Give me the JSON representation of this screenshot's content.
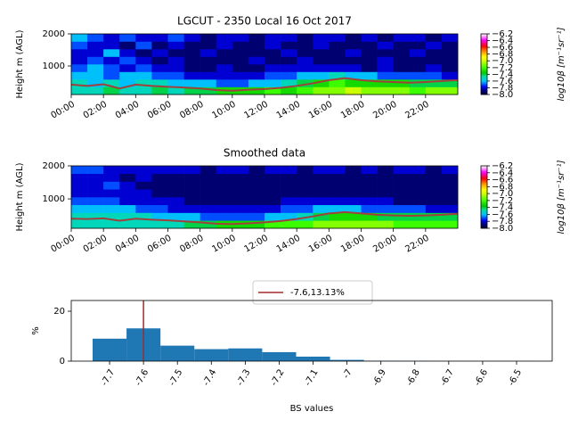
{
  "chart_data": [
    {
      "type": "heatmap",
      "title": "LGCUT - 2350 Local 16 Oct 2017",
      "ylabel": "Height m (AGL)",
      "xlim": [
        0,
        24
      ],
      "ylim": [
        111,
        2000
      ],
      "xticks": [
        {
          "value": 0,
          "label": "00:00"
        },
        {
          "value": 2,
          "label": "02:00"
        },
        {
          "value": 4,
          "label": "04:00"
        },
        {
          "value": 6,
          "label": "06:00"
        },
        {
          "value": 8,
          "label": "08:00"
        },
        {
          "value": 10,
          "label": "10:00"
        },
        {
          "value": 12,
          "label": "12:00"
        },
        {
          "value": 14,
          "label": "14:00"
        },
        {
          "value": 16,
          "label": "16:00"
        },
        {
          "value": 18,
          "label": "18:00"
        },
        {
          "value": 20,
          "label": "20:00"
        },
        {
          "value": 22,
          "label": "22:00"
        }
      ],
      "yticks": [
        1000,
        2000
      ],
      "x_bins": [
        0,
        1,
        2,
        3,
        4,
        5,
        6,
        7,
        8,
        9,
        10,
        11,
        12,
        13,
        14,
        15,
        16,
        17,
        18,
        19,
        20,
        21,
        22,
        23,
        24
      ],
      "y_bins": [
        111,
        347,
        583,
        820,
        1056,
        1292,
        1528,
        1764,
        2000
      ],
      "z": [
        [
          -7.5,
          -7.5,
          -7.4,
          -7.5,
          -7.5,
          -7.4,
          -7.5,
          -7.4,
          -7.4,
          -7.3,
          -7.3,
          -7.3,
          -7.2,
          -7.3,
          -7.2,
          -7.1,
          -7.1,
          -7.0,
          -7.1,
          -7.1,
          -7.1,
          -7.2,
          -7.1,
          -7.1
        ],
        [
          -7.5,
          -7.6,
          -7.5,
          -7.6,
          -7.5,
          -7.5,
          -7.6,
          -7.6,
          -7.6,
          -7.7,
          -7.7,
          -7.6,
          -7.6,
          -7.5,
          -7.4,
          -7.3,
          -7.2,
          -7.3,
          -7.3,
          -7.3,
          -7.3,
          -7.4,
          -7.4,
          -7.4
        ],
        [
          -7.6,
          -7.6,
          -7.7,
          -7.6,
          -7.6,
          -7.7,
          -7.7,
          -7.8,
          -7.8,
          -7.8,
          -7.8,
          -7.8,
          -7.7,
          -7.7,
          -7.6,
          -7.6,
          -7.5,
          -7.6,
          -7.6,
          -7.7,
          -7.7,
          -7.7,
          -7.7,
          -7.8
        ],
        [
          -7.7,
          -7.6,
          -7.7,
          -7.8,
          -7.7,
          -7.8,
          -7.8,
          -7.9,
          -7.9,
          -7.8,
          -7.9,
          -7.9,
          -7.8,
          -7.8,
          -7.8,
          -7.8,
          -7.8,
          -7.8,
          -7.9,
          -7.8,
          -7.9,
          -7.9,
          -7.8,
          -7.9
        ],
        [
          -7.8,
          -7.7,
          -7.8,
          -7.7,
          -7.8,
          -7.9,
          -7.8,
          -7.9,
          -7.9,
          -7.9,
          -7.9,
          -7.8,
          -7.9,
          -7.9,
          -7.8,
          -7.9,
          -7.9,
          -7.9,
          -7.9,
          -7.8,
          -7.9,
          -7.9,
          -7.9,
          -7.9
        ],
        [
          -7.8,
          -7.8,
          -7.6,
          -7.8,
          -7.9,
          -7.8,
          -7.9,
          -7.9,
          -7.8,
          -7.9,
          -7.9,
          -7.9,
          -7.9,
          -7.8,
          -7.9,
          -7.9,
          -7.9,
          -7.8,
          -7.9,
          -7.9,
          -7.9,
          -7.8,
          -7.9,
          -7.9
        ],
        [
          -7.7,
          -7.8,
          -7.8,
          -7.9,
          -7.7,
          -7.9,
          -7.8,
          -7.9,
          -7.9,
          -7.8,
          -7.9,
          -7.9,
          -7.8,
          -7.9,
          -7.9,
          -7.8,
          -7.9,
          -7.9,
          -7.9,
          -7.8,
          -7.9,
          -7.9,
          -7.8,
          -7.9
        ],
        [
          -7.6,
          -7.7,
          -7.8,
          -7.7,
          -7.8,
          -7.8,
          -7.7,
          -7.8,
          -7.9,
          -7.8,
          -7.8,
          -7.9,
          -7.8,
          -7.8,
          -7.9,
          -7.8,
          -7.8,
          -7.9,
          -7.8,
          -7.9,
          -7.8,
          -7.8,
          -7.9,
          -7.8
        ]
      ],
      "line": {
        "color": "#a0413c",
        "x": [
          0,
          1,
          2,
          3,
          4,
          5,
          6,
          7,
          8,
          9,
          10,
          11,
          12,
          13,
          14,
          15,
          16,
          17,
          18,
          19,
          20,
          21,
          22,
          23,
          24
        ],
        "values": [
          420,
          380,
          430,
          300,
          420,
          380,
          350,
          330,
          300,
          250,
          230,
          260,
          280,
          320,
          380,
          460,
          560,
          620,
          560,
          520,
          500,
          480,
          500,
          530,
          560
        ]
      },
      "colorbar": {
        "label": "log10β [m⁻¹sr⁻¹]",
        "lim": [
          -8.0,
          -6.2
        ],
        "ticks": [
          {
            "value": -6.2,
            "label": "−6.2"
          },
          {
            "value": -6.4,
            "label": "−6.4"
          },
          {
            "value": -6.6,
            "label": "−6.6"
          },
          {
            "value": -6.8,
            "label": "−6.8"
          },
          {
            "value": -7.0,
            "label": "−7.0"
          },
          {
            "value": -7.2,
            "label": "−7.2"
          },
          {
            "value": -7.4,
            "label": "−7.4"
          },
          {
            "value": -7.6,
            "label": "−7.6"
          },
          {
            "value": -7.8,
            "label": "−7.8"
          },
          {
            "value": -8.0,
            "label": "−8.0"
          }
        ]
      }
    },
    {
      "type": "heatmap",
      "title": "Smoothed data",
      "ylabel": "Height m (AGL)",
      "xlim": [
        0,
        24
      ],
      "ylim": [
        111,
        2000
      ],
      "xticks": [
        {
          "value": 0,
          "label": "00:00"
        },
        {
          "value": 2,
          "label": "02:00"
        },
        {
          "value": 4,
          "label": "04:00"
        },
        {
          "value": 6,
          "label": "06:00"
        },
        {
          "value": 8,
          "label": "08:00"
        },
        {
          "value": 10,
          "label": "10:00"
        },
        {
          "value": 12,
          "label": "12:00"
        },
        {
          "value": 14,
          "label": "14:00"
        },
        {
          "value": 16,
          "label": "16:00"
        },
        {
          "value": 18,
          "label": "18:00"
        },
        {
          "value": 20,
          "label": "20:00"
        },
        {
          "value": 22,
          "label": "22:00"
        }
      ],
      "yticks": [
        1000,
        2000
      ],
      "x_bins": [
        0,
        1,
        2,
        3,
        4,
        5,
        6,
        7,
        8,
        9,
        10,
        11,
        12,
        13,
        14,
        15,
        16,
        17,
        18,
        19,
        20,
        21,
        22,
        23,
        24
      ],
      "y_bins": [
        111,
        347,
        583,
        820,
        1056,
        1292,
        1528,
        1764,
        2000
      ],
      "z": [
        [
          -7.5,
          -7.5,
          -7.5,
          -7.5,
          -7.5,
          -7.5,
          -7.5,
          -7.4,
          -7.4,
          -7.3,
          -7.3,
          -7.3,
          -7.2,
          -7.2,
          -7.2,
          -7.1,
          -7.1,
          -7.1,
          -7.1,
          -7.1,
          -7.2,
          -7.2,
          -7.2,
          -7.2
        ],
        [
          -7.5,
          -7.5,
          -7.5,
          -7.5,
          -7.5,
          -7.6,
          -7.6,
          -7.6,
          -7.7,
          -7.7,
          -7.7,
          -7.7,
          -7.6,
          -7.6,
          -7.5,
          -7.4,
          -7.3,
          -7.3,
          -7.3,
          -7.4,
          -7.4,
          -7.4,
          -7.4,
          -7.4
        ],
        [
          -7.6,
          -7.6,
          -7.6,
          -7.6,
          -7.7,
          -7.7,
          -7.8,
          -7.8,
          -7.8,
          -7.8,
          -7.8,
          -7.8,
          -7.8,
          -7.7,
          -7.7,
          -7.6,
          -7.6,
          -7.6,
          -7.7,
          -7.7,
          -7.7,
          -7.7,
          -7.8,
          -7.8
        ],
        [
          -7.7,
          -7.7,
          -7.7,
          -7.8,
          -7.8,
          -7.8,
          -7.8,
          -7.9,
          -7.9,
          -7.9,
          -7.9,
          -7.9,
          -7.9,
          -7.8,
          -7.8,
          -7.8,
          -7.8,
          -7.8,
          -7.8,
          -7.8,
          -7.9,
          -7.9,
          -7.9,
          -7.9
        ],
        [
          -7.8,
          -7.8,
          -7.8,
          -7.8,
          -7.8,
          -7.9,
          -7.9,
          -7.9,
          -7.9,
          -7.9,
          -7.9,
          -7.9,
          -7.9,
          -7.9,
          -7.9,
          -7.9,
          -7.9,
          -7.9,
          -7.9,
          -7.9,
          -7.9,
          -7.9,
          -7.9,
          -7.9
        ],
        [
          -7.8,
          -7.8,
          -7.7,
          -7.8,
          -7.9,
          -7.9,
          -7.9,
          -7.9,
          -7.9,
          -7.9,
          -7.9,
          -7.9,
          -7.9,
          -7.9,
          -7.9,
          -7.9,
          -7.9,
          -7.9,
          -7.9,
          -7.9,
          -7.9,
          -7.9,
          -7.9,
          -7.9
        ],
        [
          -7.8,
          -7.8,
          -7.8,
          -7.9,
          -7.8,
          -7.9,
          -7.9,
          -7.9,
          -7.9,
          -7.9,
          -7.9,
          -7.9,
          -7.9,
          -7.9,
          -7.9,
          -7.9,
          -7.9,
          -7.9,
          -7.9,
          -7.9,
          -7.9,
          -7.9,
          -7.9,
          -7.9
        ],
        [
          -7.7,
          -7.7,
          -7.8,
          -7.8,
          -7.8,
          -7.8,
          -7.8,
          -7.8,
          -7.9,
          -7.8,
          -7.8,
          -7.9,
          -7.8,
          -7.8,
          -7.9,
          -7.8,
          -7.8,
          -7.9,
          -7.8,
          -7.9,
          -7.8,
          -7.8,
          -7.9,
          -7.8
        ]
      ],
      "line": {
        "color": "#a0413c",
        "x": [
          0,
          1,
          2,
          3,
          4,
          5,
          6,
          7,
          8,
          9,
          10,
          11,
          12,
          13,
          14,
          15,
          16,
          17,
          18,
          19,
          20,
          21,
          22,
          23,
          24
        ],
        "values": [
          400,
          390,
          410,
          340,
          400,
          370,
          350,
          320,
          290,
          250,
          240,
          260,
          290,
          330,
          390,
          470,
          560,
          600,
          560,
          520,
          500,
          490,
          500,
          520,
          550
        ]
      },
      "colorbar": {
        "label": "log10β [m⁻¹sr⁻¹]",
        "lim": [
          -8.0,
          -6.2
        ],
        "ticks": [
          {
            "value": -6.2,
            "label": "−6.2"
          },
          {
            "value": -6.4,
            "label": "−6.4"
          },
          {
            "value": -6.6,
            "label": "−6.6"
          },
          {
            "value": -6.8,
            "label": "−6.8"
          },
          {
            "value": -7.0,
            "label": "−7.0"
          },
          {
            "value": -7.2,
            "label": "−7.2"
          },
          {
            "value": -7.4,
            "label": "−7.4"
          },
          {
            "value": -7.6,
            "label": "−7.6"
          },
          {
            "value": -7.8,
            "label": "−7.8"
          },
          {
            "value": -8.0,
            "label": "−8.0"
          }
        ]
      }
    },
    {
      "type": "histogram",
      "xlabel": "BS values",
      "ylabel": "%",
      "color": "#1f77b4",
      "bins": [
        -7.75,
        -7.65,
        -7.55,
        -7.45,
        -7.35,
        -7.25,
        -7.15,
        -7.05,
        -6.95,
        -6.85,
        -6.75,
        -6.65,
        -6.55,
        -6.45
      ],
      "values": [
        9,
        13.13,
        6.2,
        4.8,
        5.1,
        3.6,
        1.8,
        0.5,
        0.15,
        0.1,
        0.05,
        0.03,
        0.02
      ],
      "xlim": [
        -7.813,
        -6.395
      ],
      "ylim": [
        0,
        24.3
      ],
      "xticks": [
        -7.7,
        -7.6,
        -7.5,
        -7.4,
        -7.3,
        -7.2,
        -7.1,
        -7.0,
        -6.9,
        -6.8,
        -6.7,
        -6.6,
        -6.5
      ],
      "yticks": [
        0,
        20
      ],
      "vline": {
        "x": -7.6,
        "label": "-7.6,13.13%",
        "color": "#a52a2a"
      }
    }
  ]
}
